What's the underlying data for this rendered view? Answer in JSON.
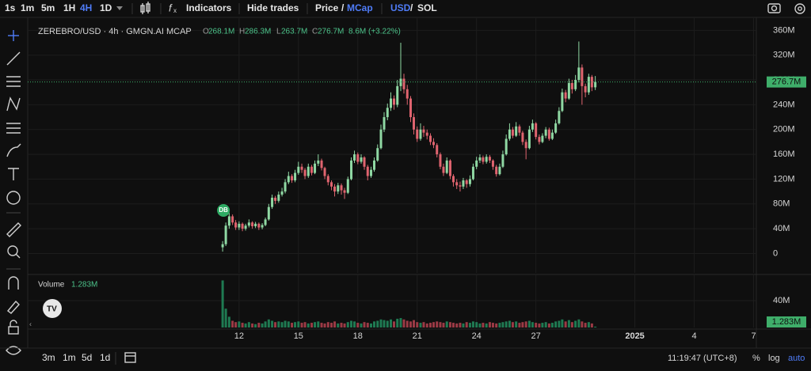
{
  "ui": {
    "intervals": [
      "1s",
      "1m",
      "5m",
      "1H",
      "4H",
      "1D"
    ],
    "indicators": "Indicators",
    "hide_trades": "Hide trades",
    "price": "Price",
    "slash": "/",
    "mcap": "MCap",
    "usd": "USD",
    "sol": "SOL",
    "ranges": [
      "3m",
      "1m",
      "5d",
      "1d"
    ],
    "clock": "11:19:47 (UTC+8)",
    "percent": "%",
    "log": "log",
    "auto": "auto",
    "badge": "DB"
  },
  "chart_data": {
    "type": "candlestick",
    "title": "ZEREBRO/USD · 4h · GMGN.AI MCAP",
    "legend": [
      {
        "key": "O",
        "value": "268.1M"
      },
      {
        "key": "H",
        "value": "286.3M"
      },
      {
        "key": "L",
        "value": "263.7M"
      },
      {
        "key": "C",
        "value": "276.7M"
      }
    ],
    "change": "8.6M (+3.22%)",
    "current_price": "276.7M",
    "volume_title": "Volume",
    "current_volume": "1.283M",
    "up_color": "#8fd8a3",
    "down_color": "#e0646f",
    "volume_up_color": "#1f7a52",
    "volume_down_color": "#9b3a45",
    "grid": true,
    "ylim": [
      -31.3,
      379.6
    ],
    "yticks": [
      {
        "value": 0,
        "label": "0"
      },
      {
        "value": 40,
        "label": "40M"
      },
      {
        "value": 80,
        "label": "80M"
      },
      {
        "value": 120,
        "label": "120M"
      },
      {
        "value": 160,
        "label": "160M"
      },
      {
        "value": 200,
        "label": "200M"
      },
      {
        "value": 240,
        "label": "240M"
      },
      {
        "value": 280,
        "label": "280M"
      },
      {
        "value": 320,
        "label": "320M"
      },
      {
        "value": 360,
        "label": "360M"
      }
    ],
    "xlim": [
      1.32,
      38.14
    ],
    "xticks": [
      12,
      15,
      18,
      21,
      24,
      27,
      {
        "value": 32,
        "label": "2025"
      },
      {
        "value": 35,
        "label": "4"
      },
      {
        "value": 38,
        "label": "7"
      }
    ],
    "volume_ylim": [
      0,
      77.6
    ],
    "volume_yticks": [
      {
        "value": 40,
        "label": "40M"
      }
    ],
    "x": [
      11.17,
      11.33,
      11.5,
      11.67,
      11.83,
      12,
      12.17,
      12.33,
      12.5,
      12.67,
      12.83,
      13,
      13.17,
      13.33,
      13.5,
      13.67,
      13.83,
      14,
      14.17,
      14.33,
      14.5,
      14.67,
      14.83,
      15,
      15.17,
      15.33,
      15.5,
      15.67,
      15.83,
      16,
      16.17,
      16.33,
      16.5,
      16.67,
      16.83,
      17,
      17.17,
      17.33,
      17.5,
      17.67,
      17.83,
      18,
      18.17,
      18.33,
      18.5,
      18.67,
      18.83,
      19,
      19.17,
      19.33,
      19.5,
      19.67,
      19.83,
      20,
      20.17,
      20.33,
      20.5,
      20.67,
      20.83,
      21,
      21.17,
      21.33,
      21.5,
      21.67,
      21.83,
      22,
      22.17,
      22.33,
      22.5,
      22.67,
      22.83,
      23,
      23.17,
      23.33,
      23.5,
      23.67,
      23.83,
      24,
      24.17,
      24.33,
      24.5,
      24.67,
      24.83,
      25,
      25.17,
      25.33,
      25.5,
      25.67,
      25.83,
      26,
      26.17,
      26.33,
      26.5,
      26.67,
      26.83,
      27,
      27.17,
      27.33,
      27.5,
      27.67,
      27.83,
      28,
      28.17,
      28.33,
      28.5,
      28.67,
      28.83,
      29,
      29.17,
      29.33,
      29.5,
      29.67,
      29.83,
      30
    ],
    "ohlc": [
      [
        10,
        20,
        3,
        15
      ],
      [
        15,
        50,
        12,
        45
      ],
      [
        45,
        66,
        40,
        60
      ],
      [
        60,
        63,
        46,
        50
      ],
      [
        50,
        54,
        38,
        42
      ],
      [
        42,
        52,
        38,
        48
      ],
      [
        48,
        50,
        36,
        40
      ],
      [
        40,
        48,
        37,
        45
      ],
      [
        45,
        55,
        42,
        50
      ],
      [
        50,
        52,
        40,
        44
      ],
      [
        44,
        51,
        41,
        48
      ],
      [
        48,
        50,
        38,
        42
      ],
      [
        42,
        49,
        39,
        46
      ],
      [
        46,
        58,
        44,
        55
      ],
      [
        55,
        80,
        53,
        75
      ],
      [
        75,
        95,
        72,
        90
      ],
      [
        90,
        93,
        80,
        85
      ],
      [
        85,
        100,
        82,
        95
      ],
      [
        95,
        106,
        92,
        100
      ],
      [
        100,
        120,
        97,
        115
      ],
      [
        115,
        132,
        112,
        125
      ],
      [
        125,
        128,
        114,
        118
      ],
      [
        118,
        135,
        115,
        130
      ],
      [
        130,
        148,
        127,
        140
      ],
      [
        140,
        145,
        130,
        135
      ],
      [
        135,
        138,
        120,
        125
      ],
      [
        125,
        145,
        122,
        140
      ],
      [
        140,
        143,
        126,
        130
      ],
      [
        130,
        150,
        128,
        145
      ],
      [
        145,
        160,
        141,
        150
      ],
      [
        150,
        153,
        134,
        138
      ],
      [
        138,
        140,
        120,
        125
      ],
      [
        125,
        128,
        110,
        115
      ],
      [
        115,
        118,
        102,
        108
      ],
      [
        108,
        112,
        92,
        100
      ],
      [
        100,
        114,
        96,
        110
      ],
      [
        110,
        113,
        95,
        102
      ],
      [
        102,
        106,
        88,
        98
      ],
      [
        98,
        124,
        96,
        120
      ],
      [
        120,
        155,
        118,
        150
      ],
      [
        150,
        166,
        146,
        160
      ],
      [
        160,
        163,
        144,
        148
      ],
      [
        148,
        160,
        145,
        155
      ],
      [
        155,
        157,
        135,
        140
      ],
      [
        140,
        143,
        118,
        125
      ],
      [
        125,
        140,
        122,
        135
      ],
      [
        135,
        155,
        132,
        150
      ],
      [
        150,
        176,
        148,
        170
      ],
      [
        170,
        208,
        168,
        200
      ],
      [
        200,
        228,
        196,
        220
      ],
      [
        220,
        242,
        215,
        235
      ],
      [
        235,
        260,
        230,
        250
      ],
      [
        250,
        255,
        232,
        240
      ],
      [
        240,
        280,
        236,
        270
      ],
      [
        270,
        340,
        262,
        282
      ],
      [
        282,
        290,
        258,
        265
      ],
      [
        265,
        272,
        240,
        250
      ],
      [
        250,
        254,
        212,
        220
      ],
      [
        220,
        226,
        192,
        200
      ],
      [
        200,
        205,
        180,
        185
      ],
      [
        185,
        210,
        182,
        200
      ],
      [
        200,
        206,
        188,
        195
      ],
      [
        195,
        200,
        184,
        190
      ],
      [
        190,
        194,
        175,
        180
      ],
      [
        180,
        186,
        170,
        175
      ],
      [
        175,
        178,
        155,
        160
      ],
      [
        160,
        163,
        136,
        140
      ],
      [
        140,
        145,
        125,
        130
      ],
      [
        130,
        155,
        128,
        150
      ],
      [
        150,
        152,
        120,
        125
      ],
      [
        125,
        128,
        108,
        115
      ],
      [
        115,
        120,
        104,
        110
      ],
      [
        110,
        116,
        100,
        108
      ],
      [
        108,
        122,
        104,
        118
      ],
      [
        118,
        120,
        106,
        112
      ],
      [
        112,
        126,
        108,
        120
      ],
      [
        120,
        145,
        118,
        140
      ],
      [
        140,
        156,
        136,
        150
      ],
      [
        150,
        160,
        146,
        155
      ],
      [
        155,
        158,
        144,
        148
      ],
      [
        148,
        160,
        145,
        156
      ],
      [
        156,
        159,
        146,
        150
      ],
      [
        150,
        152,
        135,
        140
      ],
      [
        140,
        143,
        124,
        128
      ],
      [
        128,
        145,
        126,
        140
      ],
      [
        140,
        166,
        138,
        160
      ],
      [
        160,
        192,
        158,
        185
      ],
      [
        185,
        210,
        182,
        200
      ],
      [
        200,
        204,
        186,
        190
      ],
      [
        190,
        212,
        188,
        205
      ],
      [
        205,
        208,
        190,
        195
      ],
      [
        195,
        198,
        175,
        180
      ],
      [
        180,
        184,
        152,
        170
      ],
      [
        170,
        206,
        168,
        200
      ],
      [
        200,
        216,
        196,
        210
      ],
      [
        210,
        212,
        184,
        188
      ],
      [
        188,
        192,
        176,
        180
      ],
      [
        180,
        194,
        178,
        190
      ],
      [
        190,
        204,
        186,
        200
      ],
      [
        200,
        203,
        182,
        185
      ],
      [
        185,
        200,
        183,
        195
      ],
      [
        195,
        216,
        193,
        210
      ],
      [
        210,
        236,
        208,
        230
      ],
      [
        230,
        266,
        228,
        260
      ],
      [
        260,
        264,
        244,
        250
      ],
      [
        250,
        282,
        248,
        275
      ],
      [
        275,
        280,
        258,
        265
      ],
      [
        265,
        288,
        262,
        280
      ],
      [
        280,
        342,
        276,
        300
      ],
      [
        300,
        305,
        240,
        270
      ],
      [
        270,
        274,
        252,
        260
      ],
      [
        260,
        290,
        256,
        285
      ],
      [
        285,
        288,
        262,
        268.1
      ],
      [
        268.1,
        286.3,
        263.7,
        276.7
      ]
    ],
    "volume": [
      70,
      28,
      16,
      10,
      8,
      9,
      7,
      6,
      8,
      6,
      5,
      7,
      6,
      9,
      12,
      10,
      8,
      9,
      8,
      10,
      9,
      7,
      8,
      9,
      7,
      8,
      6,
      7,
      8,
      9,
      7,
      6,
      8,
      7,
      9,
      6,
      7,
      6,
      8,
      10,
      9,
      7,
      6,
      8,
      7,
      6,
      9,
      10,
      12,
      11,
      10,
      12,
      9,
      13,
      14,
      12,
      10,
      9,
      11,
      8,
      7,
      8,
      6,
      7,
      8,
      9,
      8,
      7,
      9,
      8,
      7,
      6,
      7,
      6,
      8,
      7,
      9,
      8,
      6,
      7,
      6,
      8,
      7,
      6,
      7,
      8,
      9,
      10,
      8,
      9,
      7,
      8,
      9,
      10,
      8,
      7,
      6,
      7,
      8,
      6,
      7,
      9,
      10,
      12,
      9,
      11,
      8,
      10,
      12,
      9,
      7,
      8,
      6,
      1.283
    ]
  }
}
